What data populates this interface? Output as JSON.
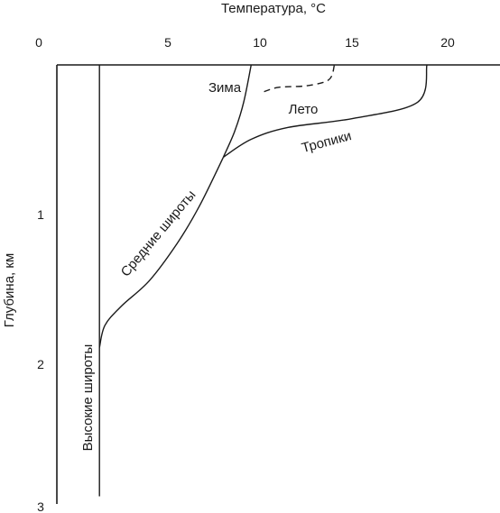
{
  "chart_data": {
    "type": "line",
    "title": "",
    "xlabel": "Температура, °C",
    "ylabel": "Глубина, км",
    "xlim": [
      0,
      24
    ],
    "ylim": [
      0,
      3
    ],
    "x_ticks": [
      "0",
      "5",
      "10",
      "15",
      "20"
    ],
    "y_ticks": [
      "1",
      "2",
      "3"
    ],
    "grid": false,
    "legend": "none",
    "series": [
      {
        "name": "Высокие широты",
        "line_style": "solid",
        "points": [
          [
            2.3,
            0.0
          ],
          [
            2.3,
            2.9
          ]
        ]
      },
      {
        "name": "Средние широты",
        "line_style": "solid",
        "points": [
          [
            2.3,
            1.9
          ],
          [
            2.6,
            1.75
          ],
          [
            3.5,
            1.62
          ],
          [
            5.0,
            1.45
          ],
          [
            6.5,
            1.2
          ],
          [
            7.7,
            0.95
          ],
          [
            9.0,
            0.62
          ]
        ]
      },
      {
        "name": "Зима",
        "line_style": "solid",
        "points": [
          [
            9.0,
            0.62
          ],
          [
            9.6,
            0.45
          ],
          [
            10.1,
            0.25
          ],
          [
            10.5,
            0.0
          ]
        ]
      },
      {
        "name": "Лето",
        "line_style": "dashed",
        "points": [
          [
            11.2,
            0.18
          ],
          [
            12.0,
            0.15
          ],
          [
            13.5,
            0.14
          ],
          [
            14.7,
            0.1
          ],
          [
            15.0,
            0.0
          ]
        ]
      },
      {
        "name": "Тропики",
        "line_style": "solid",
        "points": [
          [
            9.0,
            0.62
          ],
          [
            10.5,
            0.5
          ],
          [
            12.5,
            0.42
          ],
          [
            16.0,
            0.36
          ],
          [
            19.5,
            0.25
          ],
          [
            20.0,
            0.0
          ]
        ]
      }
    ]
  }
}
